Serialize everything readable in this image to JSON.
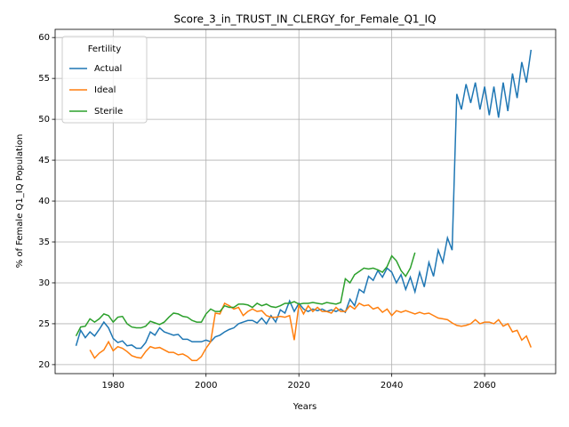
{
  "chart_data": {
    "type": "line",
    "title": "Score_3_in_TRUST_IN_CLERGY_for_Female_Q1_IQ",
    "x_label": "Years",
    "y_label": "% of Female Q1_IQ Population",
    "legend_title": "Fertility",
    "legend_position": "upper left",
    "grid": true,
    "xlim": [
      1967.5,
      2075.3
    ],
    "ylim": [
      18.9,
      61.0
    ],
    "xticks": [
      1980,
      2000,
      2020,
      2040,
      2060
    ],
    "yticks": [
      20,
      25,
      30,
      35,
      40,
      45,
      50,
      55,
      60
    ],
    "x": [
      1972,
      1973,
      1974,
      1975,
      1976,
      1977,
      1978,
      1979,
      1980,
      1981,
      1982,
      1983,
      1984,
      1985,
      1986,
      1987,
      1988,
      1989,
      1990,
      1991,
      1992,
      1993,
      1994,
      1995,
      1996,
      1997,
      1998,
      1999,
      2000,
      2001,
      2002,
      2003,
      2004,
      2005,
      2006,
      2007,
      2008,
      2009,
      2010,
      2011,
      2012,
      2013,
      2014,
      2015,
      2016,
      2017,
      2018,
      2019,
      2020,
      2021,
      2022,
      2023,
      2024,
      2025,
      2026,
      2027,
      2028,
      2029,
      2030,
      2031,
      2032,
      2033,
      2034,
      2035,
      2036,
      2037,
      2038,
      2039,
      2040,
      2041,
      2042,
      2043,
      2044,
      2045,
      2046,
      2047,
      2048,
      2049,
      2050,
      2051,
      2052,
      2053,
      2054,
      2055,
      2056,
      2057,
      2058,
      2059,
      2060,
      2061,
      2062,
      2063,
      2064,
      2065,
      2066,
      2067,
      2068,
      2069,
      2070
    ],
    "series": [
      {
        "name": "Actual",
        "color": "#1f77b4",
        "values": [
          22.3,
          24.2,
          23.3,
          24.0,
          23.5,
          24.3,
          25.2,
          24.5,
          23.2,
          22.7,
          22.9,
          22.3,
          22.4,
          22.0,
          22.0,
          22.7,
          24.0,
          23.6,
          24.5,
          24.0,
          23.8,
          23.6,
          23.7,
          23.1,
          23.1,
          22.8,
          22.8,
          22.8,
          23.0,
          22.8,
          23.4,
          23.6,
          24.0,
          24.3,
          24.5,
          25.0,
          25.2,
          25.4,
          25.4,
          25.1,
          25.7,
          25.0,
          26.0,
          25.2,
          26.7,
          26.3,
          27.8,
          26.5,
          27.5,
          26.8,
          26.5,
          26.8,
          26.6,
          26.8,
          26.5,
          26.7,
          26.5,
          26.8,
          26.4,
          28.0,
          27.2,
          29.2,
          28.8,
          30.8,
          30.3,
          31.5,
          30.7,
          31.8,
          31.3,
          30.0,
          31.0,
          29.2,
          30.7,
          28.9,
          31.3,
          29.5,
          32.5,
          30.8,
          34.0,
          32.5,
          35.5,
          34.0,
          53.1,
          51.2,
          54.3,
          52.0,
          54.5,
          51.2,
          54.0,
          50.5,
          54.0,
          50.2,
          54.5,
          51.0,
          55.6,
          52.6,
          57.0,
          54.5,
          58.5
        ]
      },
      {
        "name": "Ideal",
        "color": "#ff7f0e",
        "values": [
          null,
          null,
          null,
          21.8,
          20.8,
          21.4,
          21.8,
          22.8,
          21.7,
          22.2,
          22.0,
          21.6,
          21.1,
          20.9,
          20.8,
          21.6,
          22.2,
          22.0,
          22.1,
          21.8,
          21.5,
          21.5,
          21.2,
          21.3,
          21.0,
          20.5,
          20.5,
          21.0,
          22.0,
          22.8,
          26.3,
          26.2,
          27.5,
          27.2,
          26.8,
          27.0,
          26.0,
          26.5,
          26.8,
          26.5,
          26.6,
          26.0,
          25.8,
          25.8,
          25.9,
          25.8,
          26.0,
          23.0,
          27.3,
          26.2,
          27.2,
          26.5,
          27.0,
          26.5,
          26.5,
          26.3,
          27.0,
          26.5,
          26.5,
          27.2,
          26.8,
          27.5,
          27.2,
          27.3,
          26.8,
          27.0,
          26.4,
          26.8,
          26.0,
          26.6,
          26.4,
          26.6,
          26.4,
          26.2,
          26.4,
          26.2,
          26.3,
          26.0,
          25.7,
          25.6,
          25.5,
          25.1,
          24.8,
          24.7,
          24.8,
          25.0,
          25.5,
          25.0,
          25.2,
          25.2,
          25.0,
          25.5,
          24.7,
          25.0,
          24.0,
          24.2,
          23.0,
          23.5,
          22.1
        ]
      },
      {
        "name": "Sterile",
        "color": "#2ca02c",
        "values": [
          23.5,
          24.6,
          24.7,
          25.6,
          25.2,
          25.6,
          26.2,
          26.0,
          25.2,
          25.8,
          25.9,
          25.0,
          24.6,
          24.5,
          24.5,
          24.7,
          25.3,
          25.1,
          24.9,
          25.2,
          25.8,
          26.3,
          26.2,
          25.9,
          25.8,
          25.4,
          25.2,
          25.2,
          26.2,
          26.8,
          26.5,
          26.5,
          27.2,
          27.0,
          27.0,
          27.4,
          27.4,
          27.3,
          27.0,
          27.5,
          27.2,
          27.4,
          27.1,
          27.0,
          27.2,
          27.5,
          27.5,
          27.7,
          27.4,
          27.5,
          27.5,
          27.6,
          27.5,
          27.4,
          27.6,
          27.5,
          27.4,
          27.6,
          30.5,
          30.0,
          31.0,
          31.4,
          31.8,
          31.7,
          31.8,
          31.6,
          31.3,
          32.0,
          33.3,
          32.7,
          31.5,
          30.8,
          31.8,
          33.7,
          null,
          null,
          null,
          null,
          null,
          null,
          null,
          null,
          null,
          null,
          null,
          null,
          null,
          null,
          null,
          null,
          null,
          null,
          null,
          null,
          null,
          null,
          null,
          null,
          null
        ]
      }
    ]
  }
}
